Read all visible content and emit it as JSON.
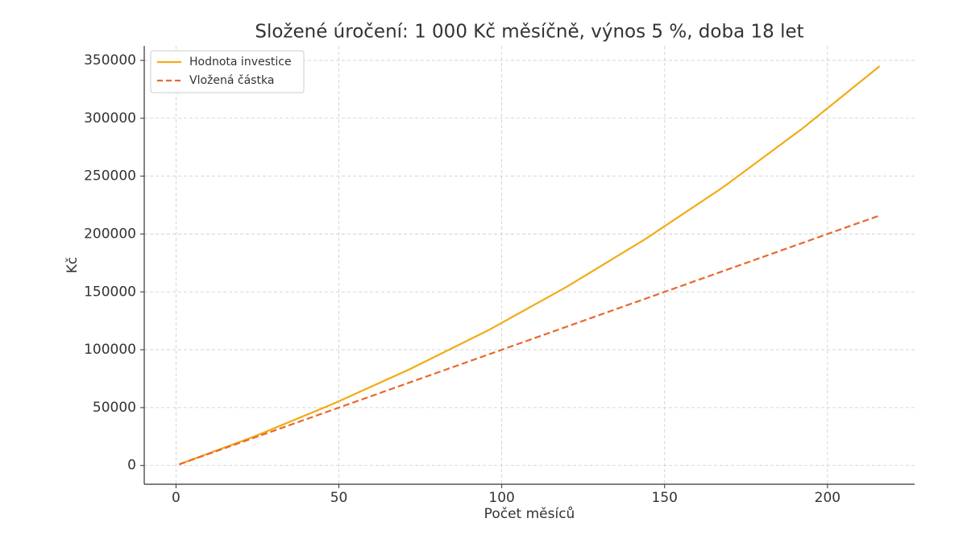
{
  "chart_data": {
    "type": "line",
    "title": "Složené úročení: 1 000 Kč měsíčně, výnos 5 %, doba 18 let",
    "x_label": "Počet měsíců",
    "y_label": "Kč",
    "x": [
      1,
      24,
      48,
      72,
      96,
      120,
      144,
      168,
      192,
      216
    ],
    "series": [
      {
        "name": "Hodnota investice",
        "color": "#f2ab16",
        "dash": "solid",
        "values": [
          1000,
          25000,
          53000,
          83500,
          117000,
          154500,
          195500,
          240500,
          290500,
          345000
        ]
      },
      {
        "name": "Vložená částka",
        "color": "#e8692c",
        "dash": "dashed",
        "values": [
          1000,
          24000,
          48000,
          72000,
          96000,
          120000,
          144000,
          168000,
          192000,
          216000
        ]
      }
    ],
    "xlim": [
      -9.75,
      226.75
    ],
    "xticks": [
      0,
      50,
      100,
      150,
      200
    ],
    "ylim": [
      -16200,
      362500
    ],
    "yticks": [
      0,
      50000,
      100000,
      150000,
      200000,
      250000,
      300000,
      350000
    ],
    "grid": true,
    "legend": "upper-left"
  }
}
